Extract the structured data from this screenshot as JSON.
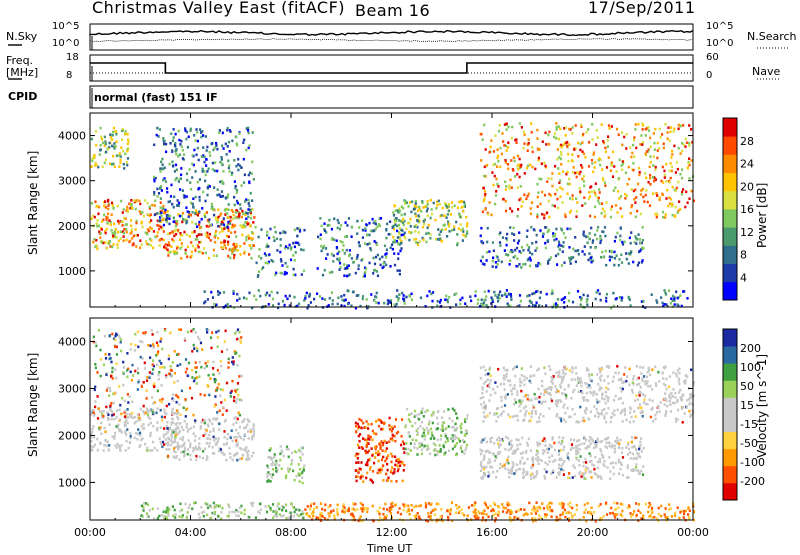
{
  "header": {
    "station": "Christmas Valley East (fitACF)",
    "beam": "Beam 16",
    "date": "17/Sep/2011"
  },
  "strips": {
    "nsky_label": "N.Sky",
    "nsearch_label": "N.Search",
    "nsky_ticks": [
      "10^5",
      "10^0"
    ],
    "nsearch_ticks": [
      "10^5",
      "10^0"
    ],
    "freq_label_1": "Freq.",
    "freq_label_2": "[MHz]",
    "freq_ticks": [
      "18",
      "8"
    ],
    "nave_label": "Nave",
    "nave_ticks": [
      "60",
      "0"
    ],
    "cpid_label": "CPID",
    "cpid_text": "normal (fast) 151 IF"
  },
  "chart_data": [
    {
      "type": "heatmap",
      "name": "power",
      "ylabel": "Slant Range [km]",
      "yticks": [
        1000,
        2000,
        3000,
        4000
      ],
      "ylim": [
        200,
        4500
      ],
      "xlim": [
        0,
        24
      ],
      "xticks": [
        0,
        4,
        8,
        12,
        16,
        20,
        24
      ],
      "colorbar": {
        "label": "Power [dB]",
        "ticks": [
          "28",
          "24",
          "20",
          "16",
          "12",
          "8",
          "4"
        ],
        "colors": [
          "#0000ff",
          "#1e3ca8",
          "#2f6e8c",
          "#4a9a6e",
          "#7fc95f",
          "#d9e040",
          "#ffc300",
          "#ff8c00",
          "#ff4a00",
          "#e00000"
        ]
      },
      "regions": [
        {
          "t0": 0.0,
          "t1": 3.0,
          "r0": 1500,
          "r1": 2600,
          "level": "high"
        },
        {
          "t0": 3.0,
          "t1": 6.5,
          "r0": 1300,
          "r1": 2400,
          "level": "high"
        },
        {
          "t0": 0.0,
          "t1": 1.5,
          "r0": 3300,
          "r1": 4200,
          "level": "mid"
        },
        {
          "t0": 2.5,
          "t1": 6.5,
          "r0": 2000,
          "r1": 4200,
          "level": "low"
        },
        {
          "t0": 6.5,
          "t1": 8.5,
          "r0": 900,
          "r1": 2000,
          "level": "low"
        },
        {
          "t0": 9.0,
          "t1": 12.5,
          "r0": 900,
          "r1": 2200,
          "level": "low"
        },
        {
          "t0": 12.0,
          "t1": 15.0,
          "r0": 1600,
          "r1": 2600,
          "level": "mid"
        },
        {
          "t0": 15.5,
          "t1": 24.0,
          "r0": 2200,
          "r1": 4300,
          "level": "high"
        },
        {
          "t0": 15.5,
          "t1": 22.0,
          "r0": 1100,
          "r1": 2000,
          "level": "low"
        },
        {
          "t0": 4.5,
          "t1": 24.0,
          "r0": 200,
          "r1": 600,
          "level": "low"
        }
      ]
    },
    {
      "type": "heatmap",
      "name": "velocity",
      "ylabel": "Slant Range [km]",
      "yticks": [
        1000,
        2000,
        3000,
        4000
      ],
      "ylim": [
        200,
        4500
      ],
      "xlim": [
        0,
        24
      ],
      "xticks": [
        0,
        4,
        8,
        12,
        16,
        20,
        24
      ],
      "xticklabels": [
        "00:00",
        "04:00",
        "08:00",
        "12:00",
        "16:00",
        "20:00",
        "00:00"
      ],
      "xlabel": "Time UT",
      "colorbar": {
        "label": "Velocity [m s^-1]",
        "ticks": [
          "200",
          "100",
          "50",
          "15",
          "-15",
          "-50",
          "-100",
          "-200"
        ],
        "colors": [
          "#e00000",
          "#ff5000",
          "#ff9a00",
          "#ffd040",
          "#c8c8c8",
          "#c8c8c8",
          "#9ad15a",
          "#3fa03f",
          "#2a6aa0",
          "#1a2aa0"
        ]
      },
      "regions": [
        {
          "t0": 0.0,
          "t1": 3.5,
          "r0": 1700,
          "r1": 2600,
          "level": "grey"
        },
        {
          "t0": 3.0,
          "t1": 6.5,
          "r0": 1500,
          "r1": 2400,
          "level": "grey"
        },
        {
          "t0": 0.0,
          "t1": 6.0,
          "r0": 2400,
          "r1": 4300,
          "level": "scatter"
        },
        {
          "t0": 7.0,
          "t1": 8.5,
          "r0": 1000,
          "r1": 1800,
          "level": "green"
        },
        {
          "t0": 10.5,
          "t1": 12.5,
          "r0": 1000,
          "r1": 2400,
          "level": "red"
        },
        {
          "t0": 12.5,
          "t1": 15.0,
          "r0": 1600,
          "r1": 2600,
          "level": "green"
        },
        {
          "t0": 15.5,
          "t1": 24.0,
          "r0": 2300,
          "r1": 3500,
          "level": "grey"
        },
        {
          "t0": 15.5,
          "t1": 22.0,
          "r0": 1100,
          "r1": 2000,
          "level": "grey"
        },
        {
          "t0": 2.0,
          "t1": 8.5,
          "r0": 250,
          "r1": 600,
          "level": "green"
        },
        {
          "t0": 8.5,
          "t1": 24.0,
          "r0": 200,
          "r1": 600,
          "level": "orange"
        }
      ]
    }
  ]
}
